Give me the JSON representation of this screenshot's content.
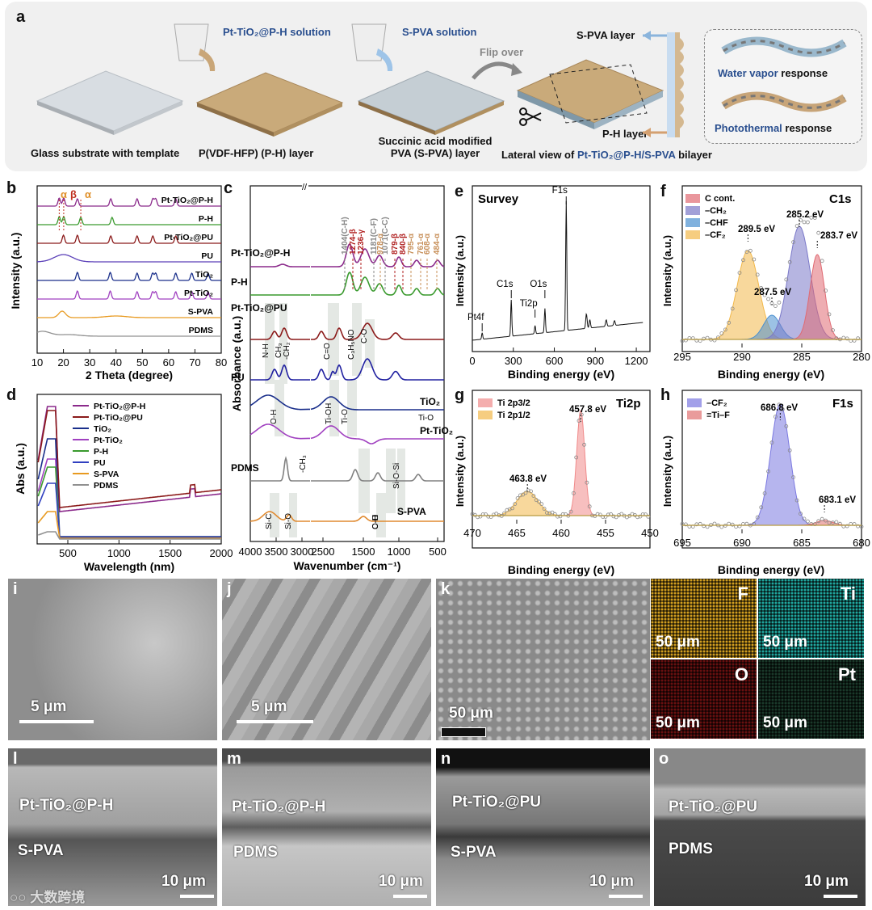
{
  "panel_a": {
    "letter": "a",
    "step1_caption": "Glass substrate with template",
    "step2_caption": "P(VDF-HFP) (P-H) layer",
    "step2_solution": "Pt-TiO₂@P-H solution",
    "step3_solution": "S-PVA solution",
    "step3_caption_line1": "Succinic acid modified",
    "step3_caption_line2": "PVA (S-PVA) layer",
    "flip_label": "Flip over",
    "top_layer_label": "S-PVA layer",
    "bottom_layer_label": "P-H layer",
    "lateral_caption_prefix": "Lateral view of",
    "lateral_caption_highlight": "Pt-TiO₂@P-H/S-PVA",
    "lateral_caption_suffix": "bilayer",
    "response1_highlight": "Water vapor",
    "response1_suffix": "response",
    "response2_highlight": "Photothermal",
    "response2_suffix": "response"
  },
  "panel_b": {
    "letter": "b",
    "chart_data": {
      "type": "line",
      "title": "",
      "xlabel": "2 Theta (degree)",
      "ylabel": "Intensity (a.u.)",
      "xlim": [
        10,
        80
      ],
      "xticks": [
        "10",
        "20",
        "30",
        "40",
        "50",
        "60",
        "70",
        "80"
      ],
      "peak_labels": [
        "α",
        "β",
        "α"
      ],
      "series": [
        {
          "name": "Pt-TiO₂@P-H",
          "color": "#8b2a8b",
          "peaks": [
            18.4,
            20.1,
            25.3,
            38.0,
            48.0,
            54.0,
            55.1,
            62.7
          ]
        },
        {
          "name": "P-H",
          "color": "#3a9a2e",
          "peaks": [
            18.4,
            20.1,
            26.6,
            38.5
          ]
        },
        {
          "name": "Pt-TiO₂@PU",
          "color": "#8b1a1a",
          "peaks": [
            20.0,
            25.3,
            38.0,
            48.0,
            54.0,
            62.7
          ]
        },
        {
          "name": "PU",
          "color": "#5a3fb8",
          "peaks": [
            20.0
          ]
        },
        {
          "name": "TiO₂",
          "color": "#1a2f8b",
          "peaks": [
            25.3,
            37.8,
            48.0,
            53.9,
            55.1,
            62.7,
            68.8,
            75.0
          ]
        },
        {
          "name": "Pt-TiO₂",
          "color": "#a040c0",
          "peaks": [
            25.3,
            37.8,
            48.0,
            53.9,
            55.1,
            62.7,
            68.8,
            75.0
          ]
        },
        {
          "name": "S-PVA",
          "color": "#e89a20",
          "peaks": [
            19.5
          ]
        },
        {
          "name": "PDMS",
          "color": "#909090",
          "peaks": [
            12.0
          ]
        }
      ]
    }
  },
  "panel_c": {
    "letter": "c",
    "chart_data": {
      "type": "line",
      "xlabel": "Wavenumber (cm⁻¹)",
      "ylabel": "Absorbance (a.u.)",
      "xticks": [
        "4000",
        "3500",
        "3000",
        "2500",
        "1500",
        "1000",
        "500"
      ],
      "series": [
        {
          "name": "Pt-TiO₂@P-H",
          "color": "#8b2a8b"
        },
        {
          "name": "P-H",
          "color": "#3a9a2e"
        },
        {
          "name": "Pt-TiO₂@PU",
          "color": "#8b1a1a"
        },
        {
          "name": "PU",
          "color": "#2020a0"
        },
        {
          "name": "TiO₂",
          "color": "#1a2f8b"
        },
        {
          "name": "Pt-TiO₂",
          "color": "#a040c0"
        },
        {
          "name": "PDMS",
          "color": "#808080"
        },
        {
          "name": "S-PVA",
          "color": "#e08a30"
        }
      ],
      "peak_annotations_gray": [
        "1404(C-H)",
        "1181(C-F)",
        "1071(C-C)"
      ],
      "peak_annotations_red": [
        "1274-β",
        "1236-γ",
        "879-β",
        "840-β"
      ],
      "peak_annotations_tan": [
        "978-α",
        "795-α",
        "761-α",
        "608-α",
        "484-α"
      ],
      "band_labels": [
        "N-H",
        "CH₃",
        "-CH₂",
        "C=O",
        "C₃H₅NO",
        "C-O",
        "O-H",
        "Ti-OH",
        "Ti-O",
        "Ti-O",
        "-CH₃",
        "Si-O-Si",
        "Si-C",
        "Si-O",
        "O-H",
        "C-H",
        "C-O"
      ]
    }
  },
  "panel_d": {
    "letter": "d",
    "chart_data": {
      "type": "line",
      "xlabel": "Wavelength (nm)",
      "ylabel": "Abs (a.u.)",
      "xlim": [
        200,
        2000
      ],
      "xticks": [
        "500",
        "1000",
        "1500",
        "2000"
      ],
      "series": [
        {
          "name": "Pt-TiO₂@P-H",
          "color": "#8b2a8b"
        },
        {
          "name": "Pt-TiO₂@PU",
          "color": "#8b1a1a"
        },
        {
          "name": "TiO₂",
          "color": "#1a2f8b"
        },
        {
          "name": "Pt-TiO₂",
          "color": "#a040c0"
        },
        {
          "name": "P-H",
          "color": "#3a9a2e"
        },
        {
          "name": "PU",
          "color": "#3040c0"
        },
        {
          "name": "S-PVA",
          "color": "#e89a20"
        },
        {
          "name": "PDMS",
          "color": "#909090"
        }
      ]
    }
  },
  "panel_e": {
    "letter": "e",
    "chart_data": {
      "type": "line",
      "title": "Survey",
      "xlabel": "Binding energy (eV)",
      "ylabel": "Intensity (a.u.)",
      "xticks": [
        "0",
        "300",
        "600",
        "900",
        "1200"
      ],
      "peaks": [
        {
          "label": "Pt4f",
          "x": 72
        },
        {
          "label": "C1s",
          "x": 285
        },
        {
          "label": "Ti2p",
          "x": 459
        },
        {
          "label": "O1s",
          "x": 531
        },
        {
          "label": "F1s",
          "x": 687
        }
      ]
    }
  },
  "panel_f": {
    "letter": "f",
    "chart_data": {
      "type": "line",
      "title": "C1s",
      "xlabel": "Binding energy (eV)",
      "ylabel": "Intensity (a.u.)",
      "xlim": [
        295,
        280
      ],
      "xticks": [
        "295",
        "290",
        "285",
        "280"
      ],
      "legend": [
        "C cont.",
        "–CH₂",
        "–CHF",
        "–CF₂"
      ],
      "peak_labels": [
        {
          "text": "289.5 eV",
          "x": 289.5
        },
        {
          "text": "285.2 eV",
          "x": 285.2
        },
        {
          "text": "283.7 eV",
          "x": 283.7
        },
        {
          "text": "287.5 eV",
          "x": 287.5
        }
      ]
    }
  },
  "panel_g": {
    "letter": "g",
    "chart_data": {
      "type": "line",
      "title": "Ti2p",
      "xlabel": "Binding energy (eV)",
      "ylabel": "Intensity (a.u.)",
      "xlim": [
        470,
        450
      ],
      "xticks": [
        "470",
        "465",
        "460",
        "455",
        "450"
      ],
      "legend": [
        "Ti 2p3/2",
        "Ti 2p1/2"
      ],
      "peak_labels": [
        {
          "text": "457.8 eV",
          "x": 457.8
        },
        {
          "text": "463.8 eV",
          "x": 463.8
        }
      ]
    }
  },
  "panel_h": {
    "letter": "h",
    "chart_data": {
      "type": "line",
      "title": "F1s",
      "xlabel": "Binding energy (eV)",
      "ylabel": "Intensity (a.u.)",
      "xlim": [
        695,
        680
      ],
      "xticks": [
        "695",
        "690",
        "685",
        "680"
      ],
      "legend": [
        "–CF₂",
        "≡Ti–F"
      ],
      "peak_labels": [
        {
          "text": "686.8 eV",
          "x": 686.8
        },
        {
          "text": "683.1 eV",
          "x": 683.1
        }
      ]
    }
  },
  "sem": {
    "i": {
      "letter": "i",
      "scale": "5 μm"
    },
    "j": {
      "letter": "j",
      "scale": "5 μm"
    },
    "k": {
      "letter": "k",
      "scale": "50 μm"
    },
    "maps": [
      {
        "element": "F",
        "scale": "50 μm",
        "color": "#d4a020"
      },
      {
        "element": "Ti",
        "scale": "50 μm",
        "color": "#20a8a0"
      },
      {
        "element": "O",
        "scale": "50 μm",
        "color": "#6a1010"
      },
      {
        "element": "Pt",
        "scale": "50 μm",
        "color": "#1a3a2a"
      }
    ],
    "l": {
      "letter": "l",
      "top": "Pt-TiO₂@P-H",
      "bottom": "S-PVA",
      "scale": "10 μm"
    },
    "m": {
      "letter": "m",
      "top": "Pt-TiO₂@P-H",
      "bottom": "PDMS",
      "scale": "10 μm"
    },
    "n": {
      "letter": "n",
      "top": "Pt-TiO₂@PU",
      "bottom": "S-PVA",
      "scale": "10 μm"
    },
    "o": {
      "letter": "o",
      "top": "Pt-TiO₂@PU",
      "bottom": "PDMS",
      "scale": "10 μm"
    }
  },
  "watermark": "大数跨境"
}
